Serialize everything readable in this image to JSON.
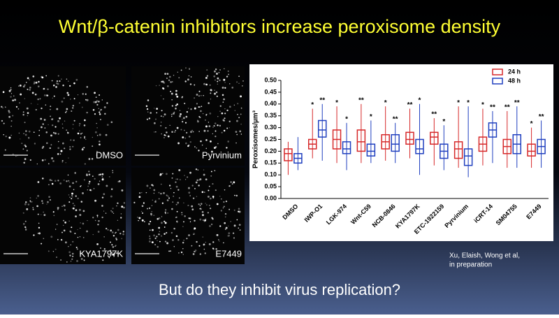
{
  "slide": {
    "title": "Wnt/β-catenin inhibitors increase peroxisome density",
    "images": [
      {
        "label": "DMSO"
      },
      {
        "label": "Pyrvinium"
      },
      {
        "label": "KYA1797K"
      },
      {
        "label": "E7449"
      }
    ],
    "credit": [
      "Xu, Elaish, Wong et al,",
      "in preparation"
    ],
    "question": "But do they inhibit virus replication?"
  },
  "chart_data": {
    "type": "box",
    "y_label": "Peroxisomes/µm³",
    "categories": [
      "DMSO",
      "IWP-O1",
      "LGK-974",
      "Wnt-C59",
      "NCB-0846",
      "KYA1797K",
      "ETC-1922159",
      "Pyrvinium",
      "iCRT-14",
      "SM04755",
      "E7449"
    ],
    "series": [
      {
        "name": "24 h",
        "color": "#d62728",
        "min": [
          0.1,
          0.17,
          0.15,
          0.15,
          0.16,
          0.17,
          0.14,
          0.13,
          0.14,
          0.13,
          0.13
        ],
        "q1": [
          0.16,
          0.21,
          0.21,
          0.2,
          0.21,
          0.23,
          0.23,
          0.17,
          0.2,
          0.19,
          0.18
        ],
        "median": [
          0.19,
          0.23,
          0.25,
          0.24,
          0.24,
          0.25,
          0.26,
          0.21,
          0.23,
          0.22,
          0.2
        ],
        "q3": [
          0.21,
          0.25,
          0.29,
          0.29,
          0.27,
          0.28,
          0.28,
          0.24,
          0.26,
          0.25,
          0.23
        ],
        "max": [
          0.24,
          0.38,
          0.39,
          0.4,
          0.39,
          0.38,
          0.34,
          0.39,
          0.38,
          0.37,
          0.3
        ],
        "stars": [
          null,
          "*",
          "*",
          "**",
          "*",
          "**",
          "**",
          "*",
          "*",
          "**",
          "*"
        ]
      },
      {
        "name": "48 h",
        "color": "#1f3fbf",
        "min": [
          0.12,
          0.16,
          0.12,
          0.15,
          0.15,
          0.1,
          0.12,
          0.09,
          0.15,
          0.13,
          0.13
        ],
        "q1": [
          0.15,
          0.26,
          0.19,
          0.18,
          0.2,
          0.19,
          0.17,
          0.14,
          0.26,
          0.19,
          0.19
        ],
        "median": [
          0.17,
          0.29,
          0.21,
          0.2,
          0.23,
          0.21,
          0.2,
          0.18,
          0.29,
          0.23,
          0.22
        ],
        "q3": [
          0.19,
          0.33,
          0.24,
          0.23,
          0.27,
          0.25,
          0.23,
          0.21,
          0.32,
          0.27,
          0.25
        ],
        "max": [
          0.26,
          0.4,
          0.32,
          0.33,
          0.32,
          0.4,
          0.31,
          0.39,
          0.37,
          0.39,
          0.33
        ],
        "stars": [
          null,
          "**",
          "*",
          "*",
          "**",
          "*",
          "*",
          "*",
          "**",
          "**",
          "**"
        ]
      }
    ],
    "ylim": [
      0,
      0.5
    ],
    "yticks": [
      {
        "value": 0,
        "label": "0.00"
      },
      {
        "value": 0.05,
        "label": "0.05"
      },
      {
        "value": 0.1,
        "label": "0.10"
      },
      {
        "value": 0.15,
        "label": "0.15"
      },
      {
        "value": 0.2,
        "label": "0.20"
      },
      {
        "value": 0.25,
        "label": "0.25"
      },
      {
        "value": 0.3,
        "label": "0.30"
      },
      {
        "value": 0.35,
        "label": "0.35"
      },
      {
        "value": 0.4,
        "label": "0.40"
      },
      {
        "value": 0.45,
        "label": "0.45"
      },
      {
        "value": 0.5,
        "label": "0.50"
      }
    ],
    "legend": "top-right"
  }
}
